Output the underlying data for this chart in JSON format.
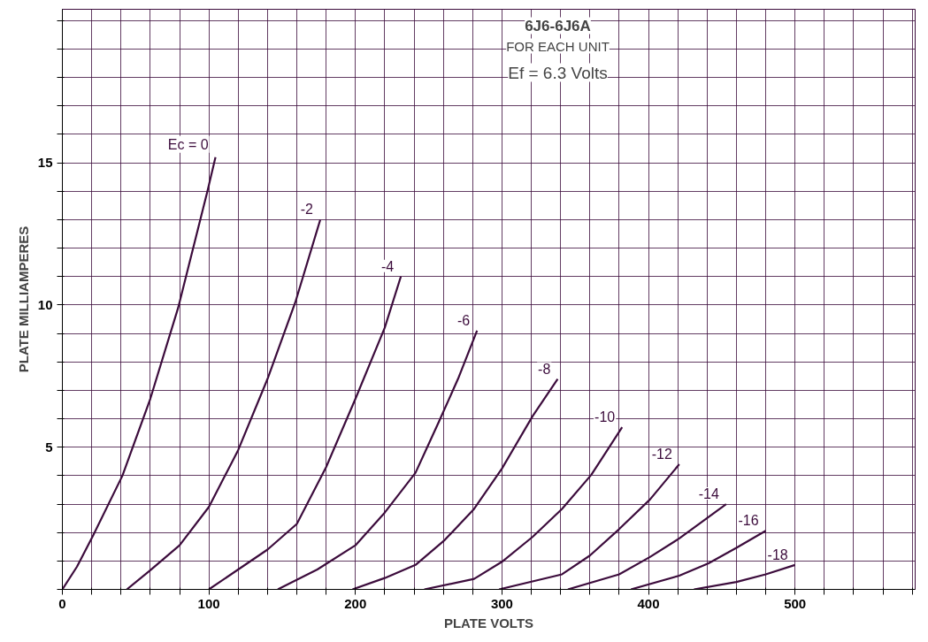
{
  "chart_data": {
    "type": "line",
    "title": "6J6-6J6A",
    "subtitle": "FOR EACH UNIT",
    "annotations": [
      "Ef = 6.3 Volts"
    ],
    "xlabel": "PLATE VOLTS",
    "ylabel": "PLATE MILLIAMPERES",
    "xlim": [
      0,
      582
    ],
    "ylim": [
      0,
      20.4
    ],
    "xticks": [
      0,
      {
        "value": 20,
        "label": null
      },
      {
        "value": 40,
        "label": null
      },
      {
        "value": 60,
        "label": null
      },
      {
        "value": 80,
        "label": null
      },
      100,
      {
        "value": 120,
        "label": null
      },
      {
        "value": 140,
        "label": null
      },
      {
        "value": 160,
        "label": null
      },
      {
        "value": 180,
        "label": null
      },
      200,
      {
        "value": 220,
        "label": null
      },
      {
        "value": 240,
        "label": null
      },
      {
        "value": 260,
        "label": null
      },
      {
        "value": 280,
        "label": null
      },
      300,
      {
        "value": 320,
        "label": null
      },
      {
        "value": 340,
        "label": null
      },
      {
        "value": 360,
        "label": null
      },
      {
        "value": 380,
        "label": null
      },
      400,
      {
        "value": 420,
        "label": null
      },
      {
        "value": 440,
        "label": null
      },
      {
        "value": 460,
        "label": null
      },
      {
        "value": 480,
        "label": null
      },
      500,
      {
        "value": 520,
        "label": null
      },
      {
        "value": 540,
        "label": null
      },
      {
        "value": 560,
        "label": null
      },
      {
        "value": 580,
        "label": null
      }
    ],
    "yticks": [
      {
        "value": 0,
        "label": null
      },
      {
        "value": 1,
        "label": null
      },
      {
        "value": 2,
        "label": null
      },
      {
        "value": 3,
        "label": null
      },
      {
        "value": 4,
        "label": null
      },
      5,
      {
        "value": 6,
        "label": null
      },
      {
        "value": 7,
        "label": null
      },
      {
        "value": 8,
        "label": null
      },
      {
        "value": 9,
        "label": null
      },
      10,
      {
        "value": 11,
        "label": null
      },
      {
        "value": 12,
        "label": null
      },
      {
        "value": 13,
        "label": null
      },
      {
        "value": 14,
        "label": null
      },
      15,
      {
        "value": 16,
        "label": null
      },
      {
        "value": 17,
        "label": null
      },
      {
        "value": 18,
        "label": null
      },
      {
        "value": 19,
        "label": null
      },
      {
        "value": 20,
        "label": null
      }
    ],
    "grid": true,
    "marker": "none",
    "line_style": "solid",
    "series": [
      {
        "name": "Ec = 0",
        "color": "#3c0c3c",
        "x": [
          0,
          10,
          21,
          41,
          60,
          79,
          99,
          104.5
        ],
        "values": [
          0,
          0.8,
          1.9,
          4.0,
          6.7,
          9.9,
          14.0,
          15.2
        ]
      },
      {
        "name": "-2",
        "color": "#3c0c3c",
        "x": [
          44,
          60,
          80,
          100,
          120,
          140,
          159,
          176
        ],
        "values": [
          0,
          0.67,
          1.55,
          2.9,
          4.9,
          7.4,
          10.1,
          13.0
        ]
      },
      {
        "name": "-4",
        "color": "#3c0c3c",
        "x": [
          100,
          120,
          140,
          160,
          180,
          200,
          220,
          231
        ],
        "values": [
          0,
          0.7,
          1.4,
          2.3,
          4.3,
          6.7,
          9.2,
          11.0
        ]
      },
      {
        "name": "-6",
        "color": "#3c0c3c",
        "x": [
          147,
          174,
          200,
          220,
          241,
          257,
          270,
          283
        ],
        "values": [
          0,
          0.7,
          1.55,
          2.7,
          4.1,
          5.9,
          7.4,
          9.1
        ]
      },
      {
        "name": "-8",
        "color": "#3c0c3c",
        "x": [
          198,
          220,
          241,
          261,
          281,
          300,
          321,
          338
        ],
        "values": [
          0,
          0.4,
          0.86,
          1.74,
          2.83,
          4.25,
          6.1,
          7.4
        ]
      },
      {
        "name": "-10",
        "color": "#3c0c3c",
        "x": [
          247,
          281,
          300,
          321,
          341,
          361,
          382
        ],
        "values": [
          0,
          0.37,
          0.97,
          1.85,
          2.83,
          4.03,
          5.7
        ]
      },
      {
        "name": "-12",
        "color": "#3c0c3c",
        "x": [
          298,
          341,
          360,
          380,
          401,
          421
        ],
        "values": [
          0,
          0.53,
          1.19,
          2.12,
          3.16,
          4.4
        ]
      },
      {
        "name": "-14",
        "color": "#3c0c3c",
        "x": [
          345,
          380,
          401,
          421,
          453
        ],
        "values": [
          0,
          0.53,
          1.14,
          1.79,
          3.0
        ]
      },
      {
        "name": "-16",
        "color": "#3c0c3c",
        "x": [
          388,
          421,
          441,
          460,
          480
        ],
        "values": [
          0,
          0.48,
          0.92,
          1.46,
          2.06
        ]
      },
      {
        "name": "-18",
        "color": "#3c0c3c",
        "x": [
          431,
          460,
          480,
          500
        ],
        "values": [
          0,
          0.26,
          0.53,
          0.86
        ]
      }
    ]
  }
}
